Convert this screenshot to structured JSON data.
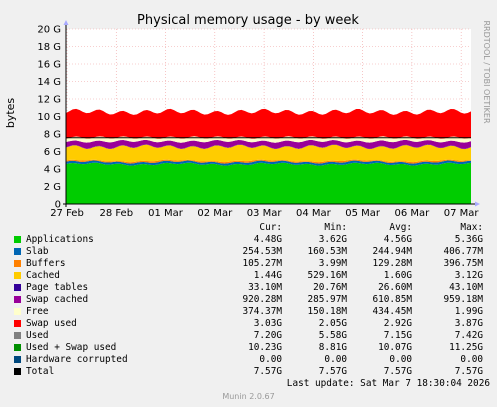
{
  "chart_data": {
    "type": "area",
    "title": "Physical memory usage - by week",
    "ylabel": "bytes",
    "side_label": "RRDTOOL / TOBI OETIKER",
    "y_ticks": [
      "0",
      "2 G",
      "4 G",
      "6 G",
      "8 G",
      "10 G",
      "12 G",
      "14 G",
      "16 G",
      "18 G",
      "20 G"
    ],
    "ylim": [
      0,
      20
    ],
    "x_ticks": [
      "27 Feb",
      "28 Feb",
      "01 Mar",
      "02 Mar",
      "03 Mar",
      "04 Mar",
      "05 Mar",
      "06 Mar",
      "07 Mar"
    ],
    "stack_gb": {
      "Applications": 4.56,
      "Slab": 0.24,
      "Buffers": 0.13,
      "Cached": 1.6,
      "Page tables": 0.03,
      "Swap cached": 0.61,
      "Free": 0.43,
      "Swap used": 2.92
    },
    "line_total_gb": 7.57,
    "header": [
      "Cur:",
      "Min:",
      "Avg:",
      "Max:"
    ],
    "series": [
      {
        "name": "Applications",
        "color": "#00cc00",
        "cur": "4.48G",
        "min": "3.62G",
        "avg": "4.56G",
        "max": "5.36G"
      },
      {
        "name": "Slab",
        "color": "#0066b3",
        "cur": "254.53M",
        "min": "160.53M",
        "avg": "244.94M",
        "max": "406.77M"
      },
      {
        "name": "Buffers",
        "color": "#ff8000",
        "cur": "105.27M",
        "min": "3.99M",
        "avg": "129.28M",
        "max": "396.75M"
      },
      {
        "name": "Cached",
        "color": "#ffcc00",
        "cur": "1.44G",
        "min": "529.16M",
        "avg": "1.60G",
        "max": "3.12G"
      },
      {
        "name": "Page tables",
        "color": "#330099",
        "cur": "33.10M",
        "min": "20.76M",
        "avg": "26.60M",
        "max": "43.10M"
      },
      {
        "name": "Swap cached",
        "color": "#990099",
        "cur": "920.28M",
        "min": "285.97M",
        "avg": "610.85M",
        "max": "959.18M"
      },
      {
        "name": "Free",
        "color": "#ffffcc",
        "cur": "374.37M",
        "min": "150.18M",
        "avg": "434.45M",
        "max": "1.99G"
      },
      {
        "name": "Swap used",
        "color": "#ff0000",
        "cur": "3.03G",
        "min": "2.05G",
        "avg": "2.92G",
        "max": "3.87G"
      },
      {
        "name": "Used",
        "color": "#808080",
        "cur": "7.20G",
        "min": "5.58G",
        "avg": "7.15G",
        "max": "7.42G"
      },
      {
        "name": "Used + Swap used",
        "color": "#008f00",
        "cur": "10.23G",
        "min": "8.81G",
        "avg": "10.07G",
        "max": "11.25G"
      },
      {
        "name": "Hardware corrupted",
        "color": "#00487d",
        "cur": "0.00",
        "min": "0.00",
        "avg": "0.00",
        "max": "0.00"
      },
      {
        "name": "Total",
        "color": "#000000",
        "cur": "7.57G",
        "min": "7.57G",
        "avg": "7.57G",
        "max": "7.57G"
      }
    ]
  },
  "footer": {
    "last_update": "Last update: Sat Mar  7 18:30:04 2026",
    "version": "Munin 2.0.67"
  }
}
